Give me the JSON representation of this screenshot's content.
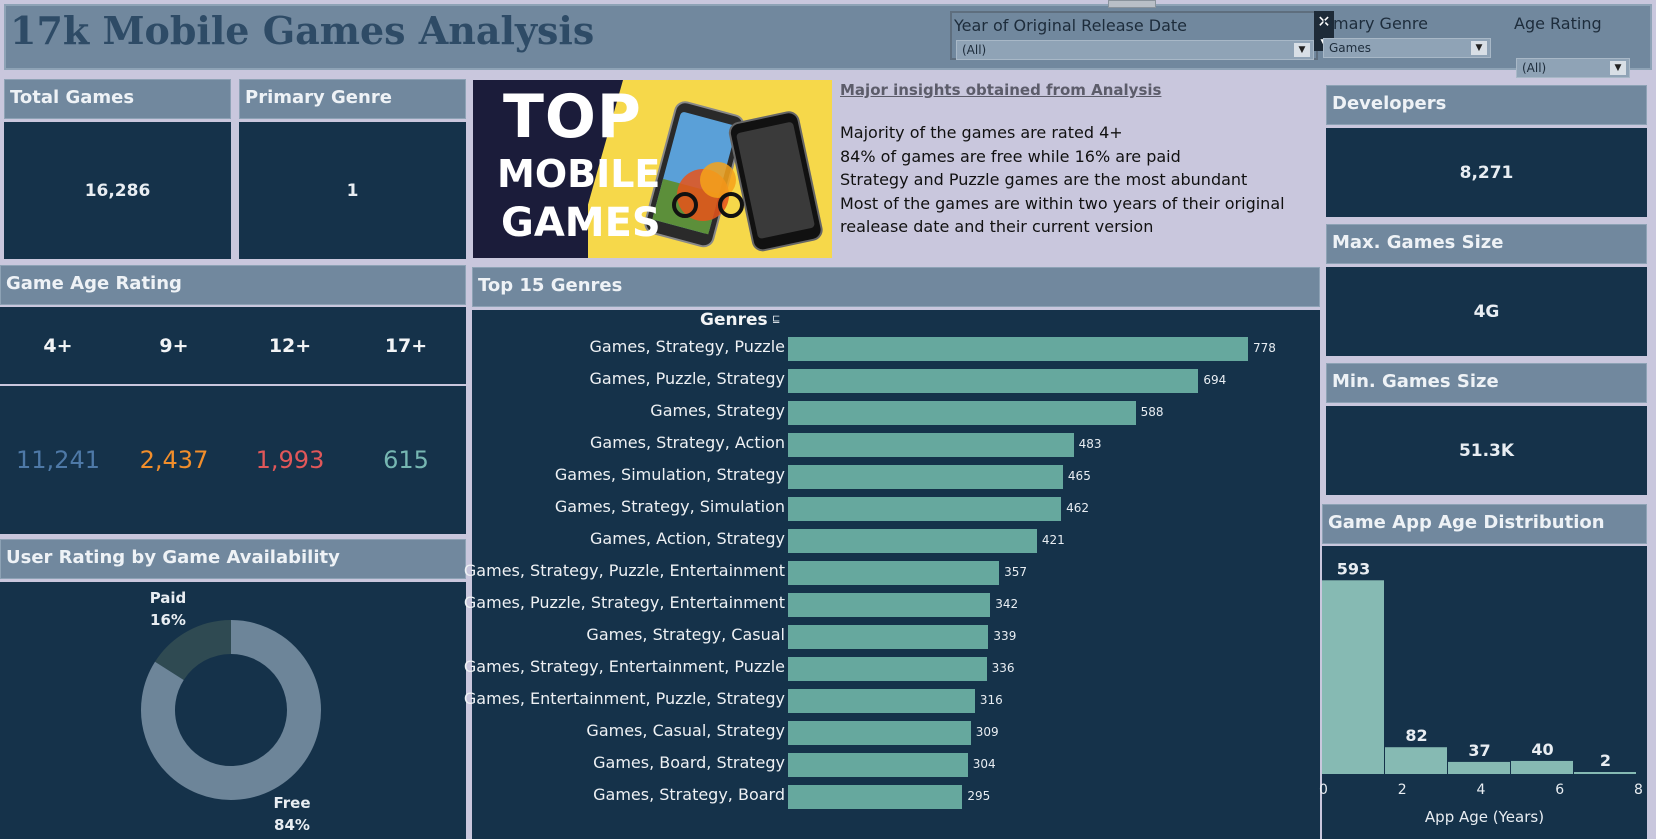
{
  "title": "17k Mobile Games Analysis",
  "filters": {
    "year": {
      "label": "Year of Original Release Date",
      "value": "(All)"
    },
    "genre": {
      "label": "rimary Genre",
      "value": "Games"
    },
    "age": {
      "label": "Age Rating",
      "value": "(All)"
    }
  },
  "kpis": {
    "total_games": {
      "label": "Total Games",
      "value": "16,286"
    },
    "primary_genre": {
      "label": "Primary Genre",
      "value": "1"
    },
    "developers": {
      "label": "Developers",
      "value": "8,271"
    },
    "max_size": {
      "label": "Max. Games Size",
      "value": "4G"
    },
    "min_size": {
      "label": "Min. Games Size",
      "value": "51.3K"
    }
  },
  "banner": {
    "line1": "TOP",
    "line2": "MOBILE",
    "line3": "GAMES"
  },
  "insights": {
    "heading": "Major insights obtained from Analysis",
    "lines": [
      "Majority of the games are rated 4+",
      "84% of games are free while 16% are paid",
      "Strategy and Puzzle games are the most abundant",
      "Most of the games are within two years of their original",
      "realease date and their current version"
    ]
  },
  "age_rating": {
    "title": "Game Age Rating",
    "items": [
      {
        "label": "4+",
        "value": "11,241",
        "color": "#4e79a7"
      },
      {
        "label": "9+",
        "value": "2,437",
        "color": "#f28e2b"
      },
      {
        "label": "12+",
        "value": "1,993",
        "color": "#e15759"
      },
      {
        "label": "17+",
        "value": "615",
        "color": "#76b7b2"
      }
    ]
  },
  "donut": {
    "title": "User Rating by Game Availability",
    "slices": [
      {
        "name": "Paid",
        "pct_label": "16%",
        "value": 16,
        "color": "#2f4a52"
      },
      {
        "name": "Free",
        "pct_label": "84%",
        "value": 84,
        "color": "#6d8599"
      }
    ]
  },
  "top_genres": {
    "title": "Top 15 Genres",
    "axis_header": "Genres",
    "bar_color": "#66a89e"
  },
  "histogram": {
    "title": "Game App Age Distribution",
    "xlabel": "App Age (Years)",
    "xticks": [
      "0",
      "2",
      "4",
      "6",
      "8"
    ],
    "bar_color": "#86bab3"
  },
  "chart_data": [
    {
      "type": "bar",
      "title": "Top 15 Genres",
      "xlabel": "",
      "ylabel": "Genres",
      "categories": [
        "Games, Strategy, Puzzle",
        "Games, Puzzle, Strategy",
        "Games, Strategy",
        "Games, Strategy, Action",
        "Games, Simulation, Strategy",
        "Games, Strategy, Simulation",
        "Games, Action, Strategy",
        "Games, Strategy, Puzzle, Entertainment",
        "Games, Puzzle, Strategy, Entertainment",
        "Games, Strategy, Casual",
        "Games, Strategy, Entertainment, Puzzle",
        "Games, Entertainment, Puzzle, Strategy",
        "Games, Casual, Strategy",
        "Games, Board, Strategy",
        "Games, Strategy, Board"
      ],
      "values": [
        778,
        694,
        588,
        483,
        465,
        462,
        421,
        357,
        342,
        339,
        336,
        316,
        309,
        304,
        295
      ],
      "xlim": [
        0,
        800
      ]
    },
    {
      "type": "bar",
      "title": "Game App Age Distribution",
      "xlabel": "App Age (Years)",
      "ylabel": "",
      "x": [
        [
          0,
          1.6
        ],
        [
          1.6,
          3.2
        ],
        [
          3.2,
          4.8
        ],
        [
          4.8,
          6.4
        ],
        [
          6.4,
          8
        ]
      ],
      "values": [
        593,
        82,
        37,
        40,
        2
      ],
      "xlim": [
        0,
        8
      ],
      "ylim": [
        0,
        600
      ]
    }
  ]
}
